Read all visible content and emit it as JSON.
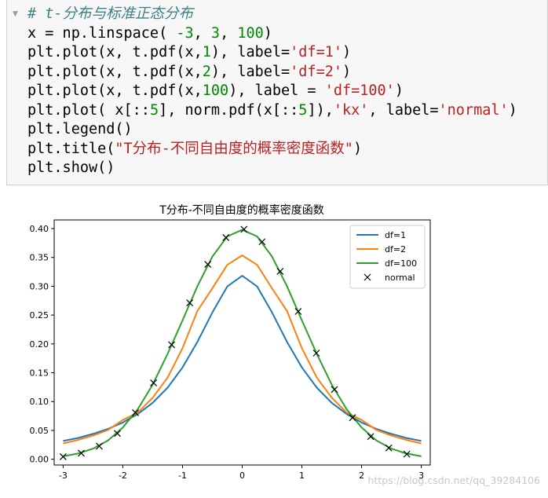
{
  "code_cell": {
    "lines": [
      [
        {
          "t": "# t-分布与标准正态分布",
          "c": "cm"
        }
      ],
      [
        {
          "t": "x = np.linspace( ",
          "c": ""
        },
        {
          "t": "-3",
          "c": "num"
        },
        {
          "t": ", ",
          "c": ""
        },
        {
          "t": "3",
          "c": "num"
        },
        {
          "t": ", ",
          "c": ""
        },
        {
          "t": "100",
          "c": "num"
        },
        {
          "t": ")",
          "c": ""
        }
      ],
      [
        {
          "t": "plt.plot(x, t.pdf(x,",
          "c": ""
        },
        {
          "t": "1",
          "c": "num"
        },
        {
          "t": "), label=",
          "c": ""
        },
        {
          "t": "'df=1'",
          "c": "str"
        },
        {
          "t": ")",
          "c": ""
        }
      ],
      [
        {
          "t": "plt.plot(x, t.pdf(x,",
          "c": ""
        },
        {
          "t": "2",
          "c": "num"
        },
        {
          "t": "), label=",
          "c": ""
        },
        {
          "t": "'df=2'",
          "c": "str"
        },
        {
          "t": ")",
          "c": ""
        }
      ],
      [
        {
          "t": "plt.plot(x, t.pdf(x,",
          "c": ""
        },
        {
          "t": "100",
          "c": "num"
        },
        {
          "t": "), label = ",
          "c": ""
        },
        {
          "t": "'df=100'",
          "c": "str"
        },
        {
          "t": ")",
          "c": ""
        }
      ],
      [
        {
          "t": "plt.plot( x[::",
          "c": ""
        },
        {
          "t": "5",
          "c": "num"
        },
        {
          "t": "], norm.pdf(x[::",
          "c": ""
        },
        {
          "t": "5",
          "c": "num"
        },
        {
          "t": "]),",
          "c": ""
        },
        {
          "t": "'kx'",
          "c": "str"
        },
        {
          "t": ", label=",
          "c": ""
        },
        {
          "t": "'normal'",
          "c": "str"
        },
        {
          "t": ")",
          "c": ""
        }
      ],
      [
        {
          "t": "plt.legend()",
          "c": ""
        }
      ],
      [
        {
          "t": "plt.title(",
          "c": ""
        },
        {
          "t": "\"T分布-不同自由度的概率密度函数\"",
          "c": "str"
        },
        {
          "t": ")",
          "c": ""
        }
      ],
      [
        {
          "t": "plt.show()",
          "c": ""
        }
      ]
    ]
  },
  "chart_data": {
    "type": "line",
    "title": "T分布-不同自由度的概率密度函数",
    "xlim": [
      -3.15,
      3.15
    ],
    "ylim": [
      -0.01,
      0.415
    ],
    "xticks": [
      -3,
      -2,
      -1,
      0,
      1,
      2,
      3
    ],
    "xtick_labels": [
      "-3",
      "-2",
      "-1",
      "0",
      "1",
      "2",
      "3"
    ],
    "yticks": [
      0.0,
      0.05,
      0.1,
      0.15,
      0.2,
      0.25,
      0.3,
      0.35,
      0.4
    ],
    "ytick_labels": [
      "0.00",
      "0.05",
      "0.10",
      "0.15",
      "0.20",
      "0.25",
      "0.30",
      "0.35",
      "0.40"
    ],
    "legend_position": "top-right",
    "series": [
      {
        "name": "df=1",
        "color": "#1f77b4",
        "kind": "line",
        "x": [
          -3.0,
          -2.75,
          -2.5,
          -2.25,
          -2.0,
          -1.75,
          -1.5,
          -1.25,
          -1.0,
          -0.75,
          -0.5,
          -0.25,
          0.0,
          0.25,
          0.5,
          0.75,
          1.0,
          1.25,
          1.5,
          1.75,
          2.0,
          2.25,
          2.5,
          2.75,
          3.0
        ],
        "y": [
          0.0318,
          0.0369,
          0.0439,
          0.0525,
          0.0637,
          0.0784,
          0.0979,
          0.1242,
          0.1592,
          0.2037,
          0.2546,
          0.2996,
          0.3183,
          0.2996,
          0.2546,
          0.2037,
          0.1592,
          0.1242,
          0.0979,
          0.0784,
          0.0637,
          0.0525,
          0.0439,
          0.0369,
          0.0318
        ]
      },
      {
        "name": "df=2",
        "color": "#ff7f0e",
        "kind": "line",
        "x": [
          -3.0,
          -2.75,
          -2.5,
          -2.25,
          -2.0,
          -1.75,
          -1.5,
          -1.25,
          -1.0,
          -0.75,
          -0.5,
          -0.25,
          0.0,
          0.25,
          0.5,
          0.75,
          1.0,
          1.25,
          1.5,
          1.75,
          2.0,
          2.25,
          2.5,
          2.75,
          3.0
        ],
        "y": [
          0.0275,
          0.0334,
          0.0409,
          0.0506,
          0.068,
          0.0809,
          0.1067,
          0.1416,
          0.1925,
          0.2573,
          0.2963,
          0.3371,
          0.3536,
          0.3371,
          0.2963,
          0.2573,
          0.1925,
          0.1416,
          0.1067,
          0.0809,
          0.068,
          0.0506,
          0.0409,
          0.0334,
          0.0275
        ]
      },
      {
        "name": "df=100",
        "color": "#2ca02c",
        "kind": "line",
        "x": [
          -3.0,
          -2.75,
          -2.5,
          -2.25,
          -2.0,
          -1.75,
          -1.5,
          -1.25,
          -1.0,
          -0.75,
          -0.5,
          -0.25,
          0.0,
          0.25,
          0.5,
          0.75,
          1.0,
          1.25,
          1.5,
          1.75,
          2.0,
          2.25,
          2.5,
          2.75,
          3.0
        ],
        "y": [
          0.0051,
          0.0099,
          0.0184,
          0.0323,
          0.055,
          0.0866,
          0.1295,
          0.1828,
          0.2408,
          0.3003,
          0.3514,
          0.3864,
          0.3979,
          0.3864,
          0.3514,
          0.3003,
          0.2408,
          0.1828,
          0.1295,
          0.0866,
          0.055,
          0.0323,
          0.0184,
          0.0099,
          0.0051
        ]
      },
      {
        "name": "normal",
        "color": "#000000",
        "kind": "marker",
        "x": [
          -3.0,
          -2.697,
          -2.394,
          -2.091,
          -1.788,
          -1.485,
          -1.182,
          -0.879,
          -0.576,
          -0.273,
          0.03,
          0.333,
          0.636,
          0.939,
          1.242,
          1.545,
          1.848,
          2.152,
          2.455,
          2.758
        ],
        "y": [
          0.0044,
          0.0105,
          0.0226,
          0.0448,
          0.0807,
          0.1324,
          0.1985,
          0.2712,
          0.3379,
          0.3844,
          0.3988,
          0.3772,
          0.3259,
          0.2563,
          0.1841,
          0.121,
          0.0721,
          0.0393,
          0.0195,
          0.0089
        ]
      }
    ]
  },
  "watermark": "https://blog.csdn.net/qq_39284106",
  "colors": {
    "axes": "#000000",
    "cell_bg": "#f7f7f7"
  }
}
